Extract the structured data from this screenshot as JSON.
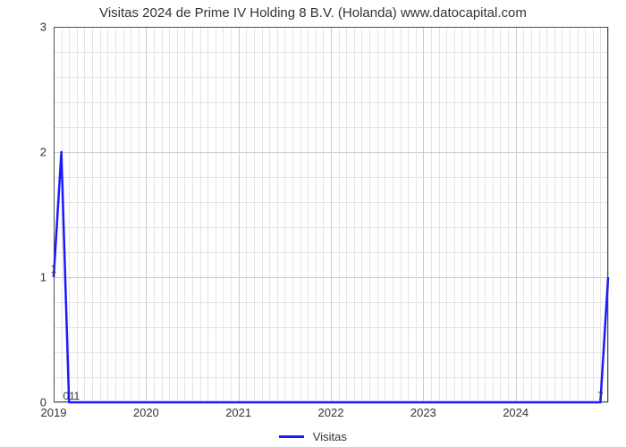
{
  "chart": {
    "type": "line",
    "title": "Visitas 2024 de Prime IV Holding 8 B.V. (Holanda) www.datocapital.com",
    "title_fontsize": 15,
    "title_color": "#333333",
    "background_color": "#ffffff",
    "plot_border_color": "#4d4d4d",
    "grid_color": "#cccccc",
    "minor_grid_color": "#e5e5e5",
    "line_color": "#1a1aff",
    "line_width": 2.5,
    "x": {
      "min": 0,
      "max": 72,
      "major_ticks": [
        0,
        12,
        24,
        36,
        48,
        60,
        72
      ],
      "major_labels": [
        "2019",
        "2020",
        "2021",
        "2022",
        "2023",
        "2024",
        ""
      ],
      "minor_step": 1,
      "label_fontsize": 13
    },
    "y": {
      "min": 0,
      "max": 3,
      "ticks": [
        0,
        1,
        2,
        3
      ],
      "labels": [
        "0",
        "1",
        "2",
        "3"
      ],
      "label_fontsize": 13,
      "minor_step": 0.2
    },
    "series": {
      "name": "Visitas",
      "points": [
        {
          "x": 0,
          "y": 1.0,
          "label": "1"
        },
        {
          "x": 1,
          "y": 2.0,
          "label": null
        },
        {
          "x": 2,
          "y": 0.0,
          "label": "01"
        },
        {
          "x": 3,
          "y": 0.0,
          "label": "1"
        },
        {
          "x": 71,
          "y": 0.0,
          "label": "7"
        },
        {
          "x": 72,
          "y": 1.0,
          "label": null
        }
      ]
    },
    "legend": {
      "label": "Visitas",
      "color": "#1a1aff"
    }
  }
}
